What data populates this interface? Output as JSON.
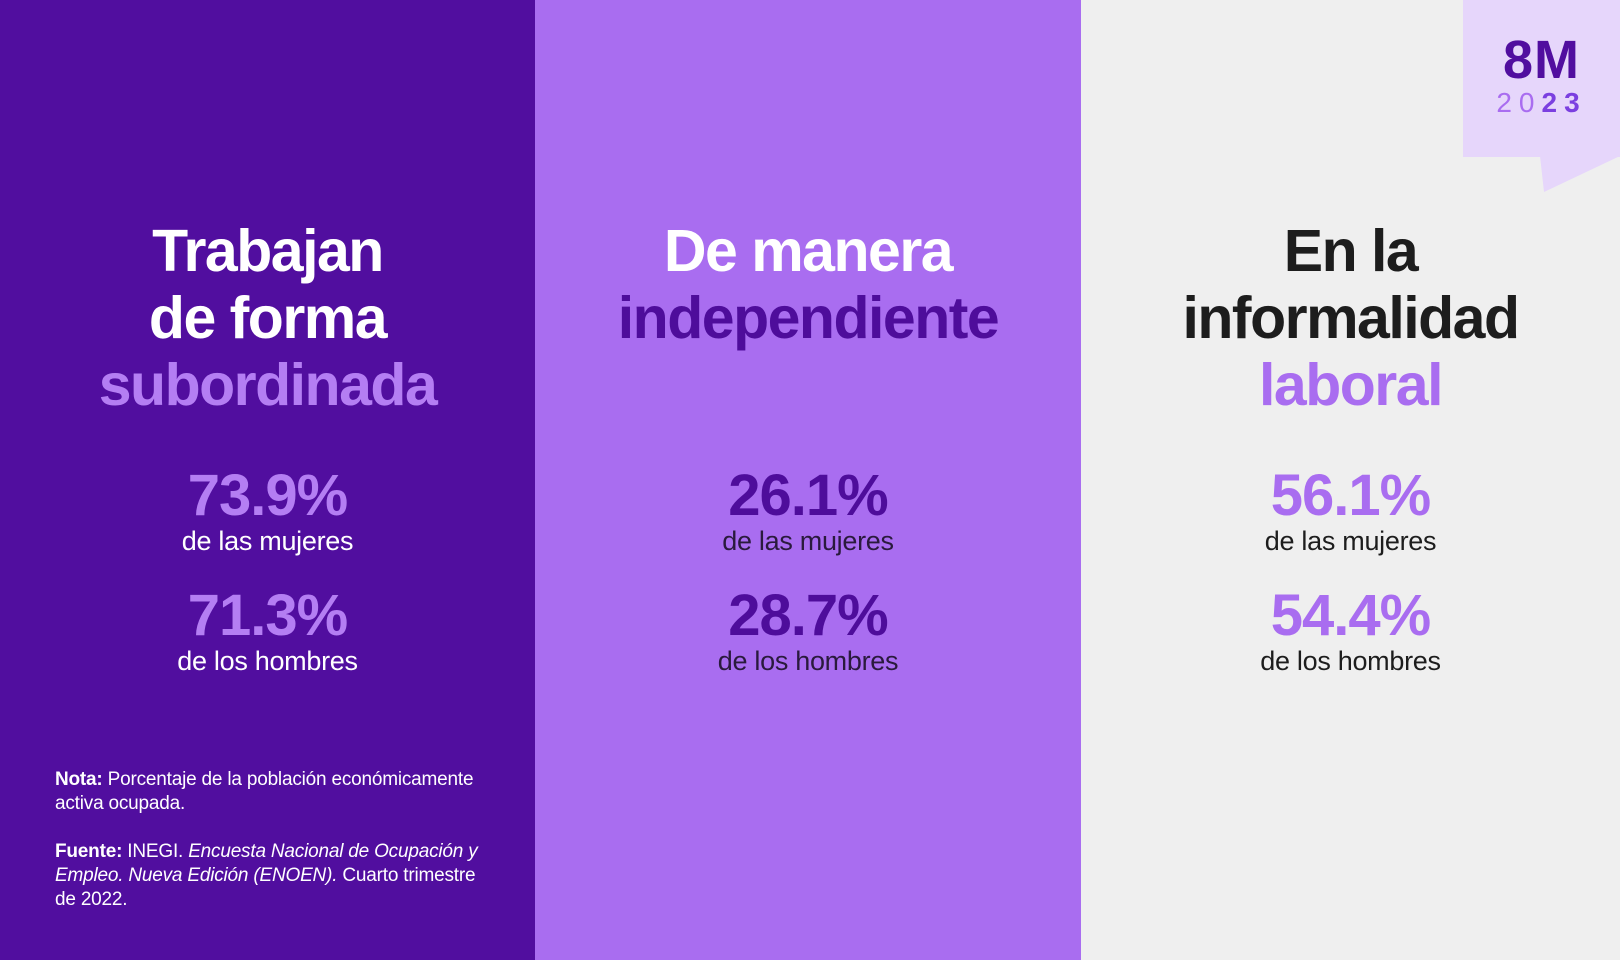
{
  "badge": {
    "top": "8M",
    "year_light": "20",
    "year_bold": "23"
  },
  "panels": [
    {
      "heading": [
        "Trabajan",
        "de forma",
        "subordinada"
      ],
      "stats": [
        {
          "value": "73.9%",
          "label": "de las mujeres"
        },
        {
          "value": "71.3%",
          "label": "de los hombres"
        }
      ]
    },
    {
      "heading": [
        "De manera",
        "independiente"
      ],
      "stats": [
        {
          "value": "26.1%",
          "label": "de las mujeres"
        },
        {
          "value": "28.7%",
          "label": "de los hombres"
        }
      ]
    },
    {
      "heading": [
        "En la",
        "informalidad",
        "laboral"
      ],
      "stats": [
        {
          "value": "56.1%",
          "label": "de las mujeres"
        },
        {
          "value": "54.4%",
          "label": "de los hombres"
        }
      ]
    }
  ],
  "notes": {
    "nota_label": "Nota:",
    "nota_text": " Porcentaje de la población económicamente activa ocupada.",
    "fuente_label": "Fuente:",
    "fuente_text": " INEGI. ",
    "fuente_italic": "Encuesta Nacional de Ocupación y Empleo. Nueva Edición (ENOEN).",
    "fuente_end": " Cuarto trimestre de 2022."
  },
  "colors": {
    "panel_dark": "#510e9f",
    "panel_mid": "#a96df0",
    "panel_light": "#efefef",
    "badge_bg": "#e6d6fb"
  }
}
